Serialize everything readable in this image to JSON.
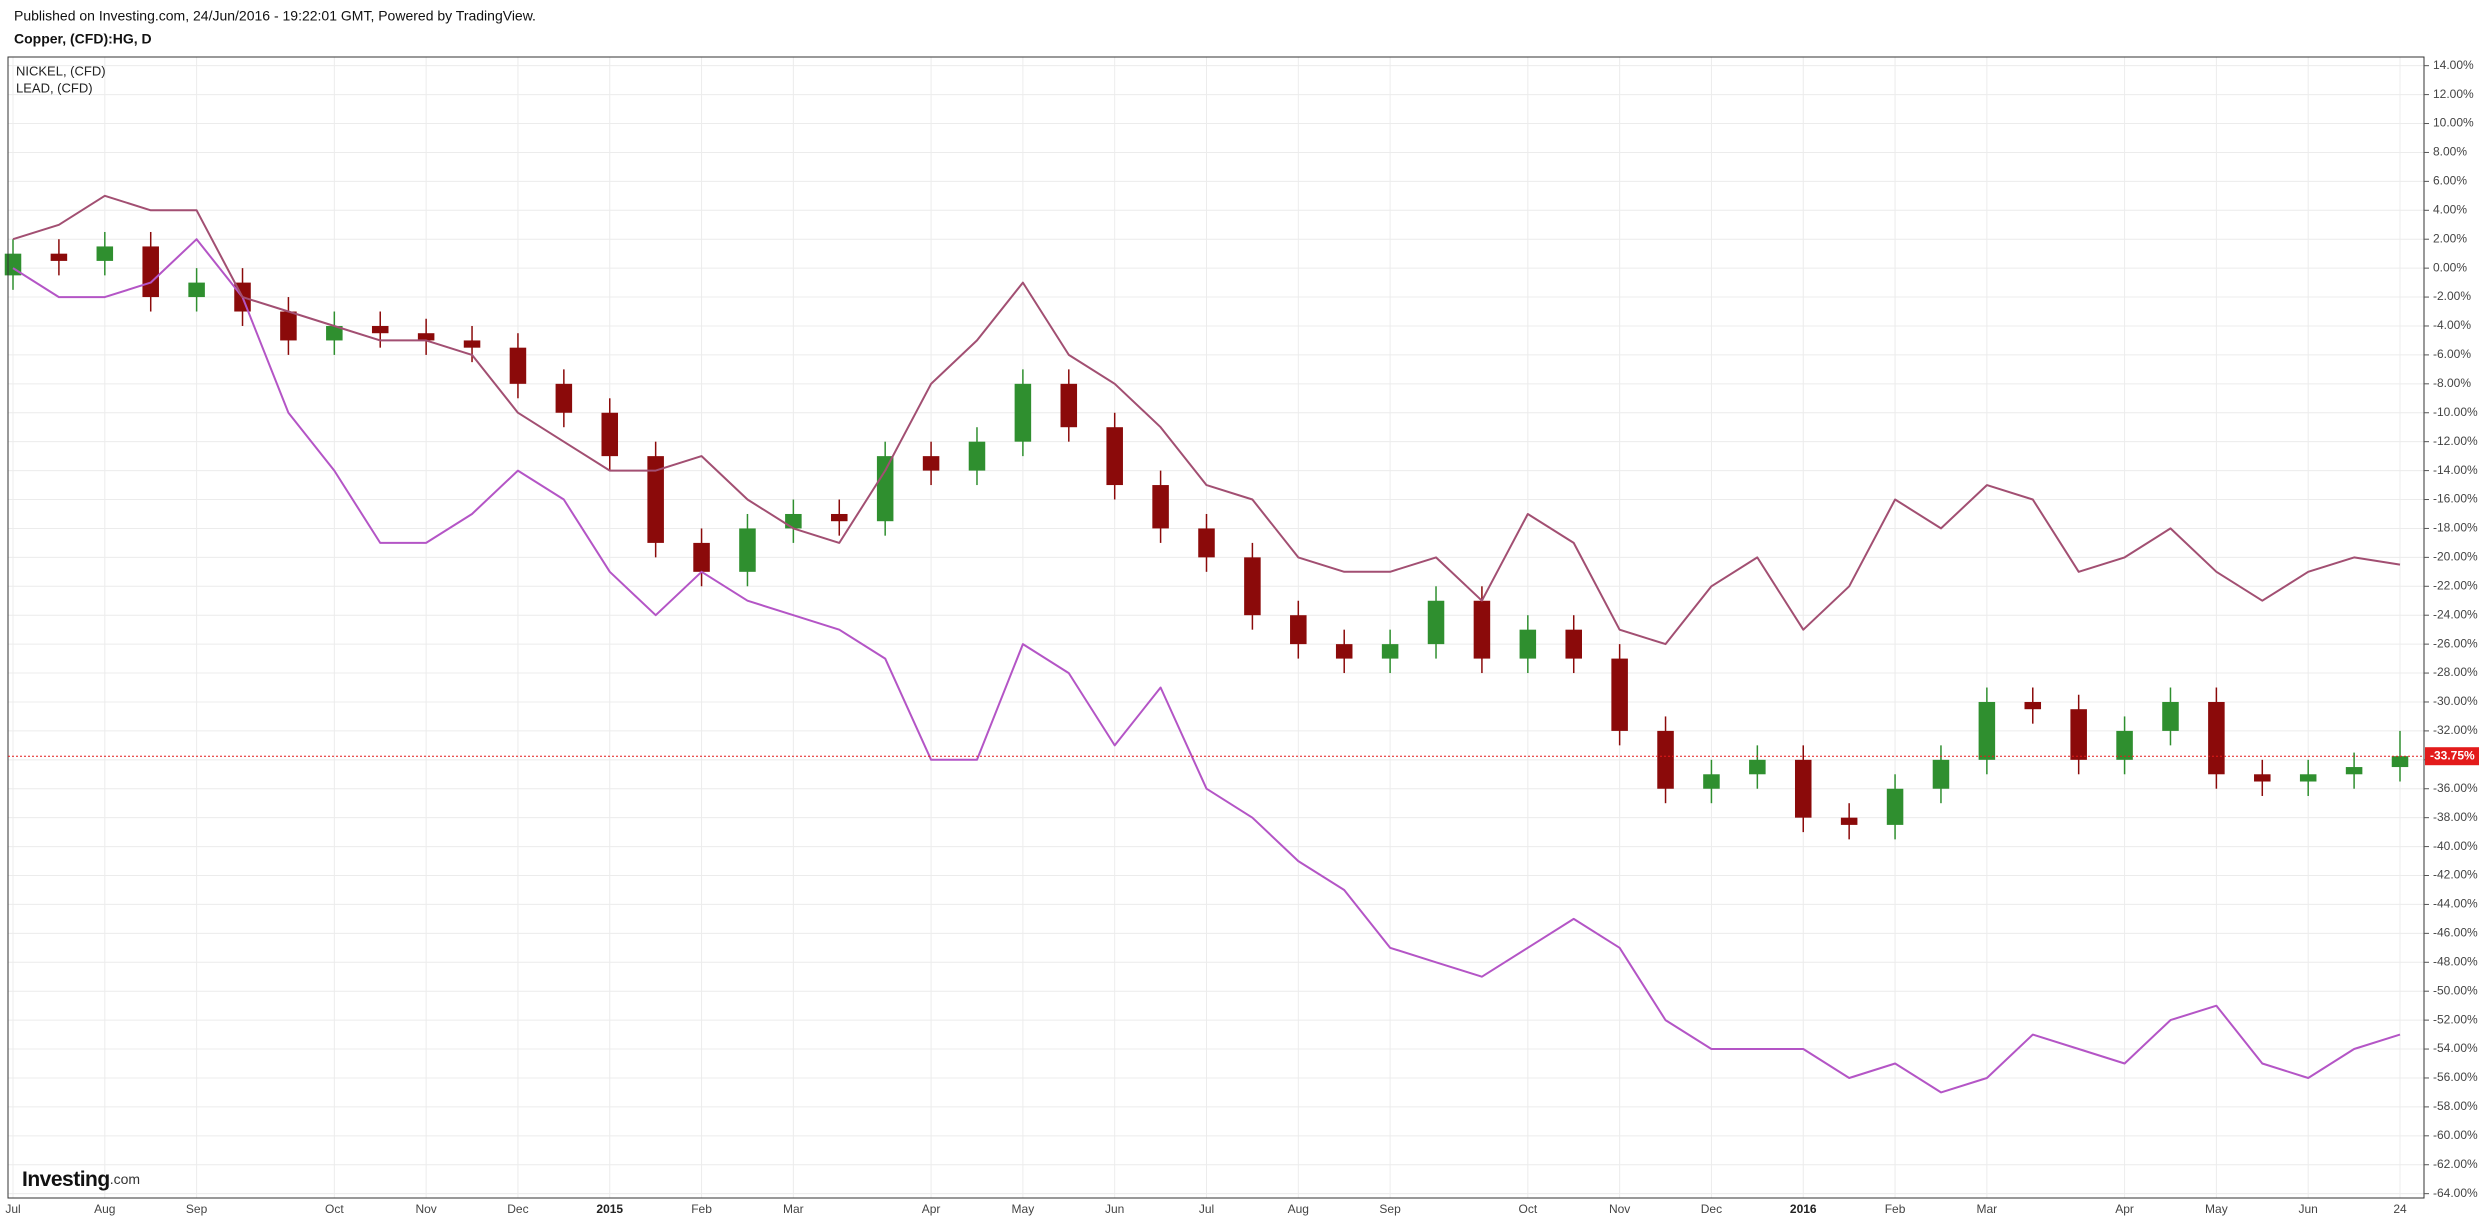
{
  "header": {
    "published": "Published on Investing.com, 24/Jun/2016 - 19:22:01 GMT, Powered by TradingView."
  },
  "brand": {
    "name": "Investing",
    "suffix": ".com"
  },
  "chart_data": {
    "type": "candlestick",
    "title": "Copper, (CFD):HG, D",
    "categories": [
      "Jul",
      null,
      "Aug",
      null,
      "Sep",
      null,
      null,
      "Oct",
      null,
      "Nov",
      null,
      "Dec",
      null,
      "2015",
      null,
      "Feb",
      null,
      "Mar",
      null,
      null,
      "Apr",
      null,
      "May",
      null,
      "Jun",
      null,
      "Jul",
      null,
      "Aug",
      null,
      "Sep",
      null,
      null,
      "Oct",
      null,
      "Nov",
      null,
      "Dec",
      null,
      "2016",
      null,
      "Feb",
      null,
      "Mar",
      null,
      null,
      "Apr",
      null,
      "May",
      null,
      "Jun",
      null,
      "24"
    ],
    "open": [
      -0.5,
      1,
      0.5,
      1.5,
      -2,
      -1,
      -3,
      -5,
      -4,
      -4.5,
      -5,
      -5.5,
      -8,
      -10,
      -13,
      -19,
      -21,
      -18,
      -17,
      -17.5,
      -13,
      -14,
      -12,
      -8,
      -11,
      -15,
      -18,
      -20,
      -24,
      -26,
      -27,
      -26,
      -23,
      -27,
      -25,
      -27,
      -32,
      -36,
      -35,
      -34,
      -38,
      -38.5,
      -36,
      -34,
      -30,
      -30.5,
      -34,
      -32,
      -30,
      -35,
      -35.5,
      -35,
      -34.5
    ],
    "high": [
      2,
      2,
      2.5,
      2.5,
      0,
      0,
      -2,
      -3,
      -3,
      -3.5,
      -4,
      -4.5,
      -7,
      -9,
      -12,
      -18,
      -17,
      -16,
      -16,
      -12,
      -12,
      -11,
      -7,
      -7,
      -10,
      -14,
      -17,
      -19,
      -23,
      -25,
      -25,
      -22,
      -22,
      -24,
      -24,
      -26,
      -31,
      -34,
      -33,
      -33,
      -37,
      -35,
      -33,
      -29,
      -29,
      -29.5,
      -31,
      -29,
      -29,
      -34,
      -34,
      -33.5,
      -32
    ],
    "low": [
      -1.5,
      -0.5,
      -0.5,
      -3,
      -3,
      -4,
      -6,
      -6,
      -5.5,
      -6,
      -6.5,
      -9,
      -11,
      -14,
      -20,
      -22,
      -22,
      -19,
      -18.5,
      -18.5,
      -15,
      -15,
      -13,
      -12,
      -16,
      -19,
      -21,
      -25,
      -27,
      -28,
      -28,
      -27,
      -28,
      -28,
      -28,
      -33,
      -37,
      -37,
      -36,
      -39,
      -39.5,
      -39.5,
      -37,
      -35,
      -31.5,
      -35,
      -35,
      -33,
      -36,
      -36.5,
      -36.5,
      -36,
      -35.5
    ],
    "close": [
      1,
      0.5,
      1.5,
      -2,
      -1,
      -3,
      -5,
      -4,
      -4.5,
      -5,
      -5.5,
      -8,
      -10,
      -13,
      -19,
      -21,
      -18,
      -17,
      -17.5,
      -13,
      -14,
      -12,
      -8,
      -11,
      -15,
      -18,
      -20,
      -24,
      -26,
      -27,
      -26,
      -23,
      -27,
      -25,
      -27,
      -32,
      -36,
      -35,
      -34,
      -38,
      -38.5,
      -36,
      -34,
      -30,
      -30.5,
      -34,
      -32,
      -30,
      -35,
      -35.5,
      -35,
      -34.5,
      -33.75
    ],
    "up_color": "#2f8f2f",
    "down_color": "#8b0a0a",
    "series": [
      {
        "name": "NICKEL,  (CFD)",
        "color": "#b455c6",
        "values": [
          0,
          -2,
          -2,
          -1,
          2,
          -2,
          -10,
          -14,
          -19,
          -19,
          -17,
          -14,
          -16,
          -21,
          -24,
          -21,
          -23,
          -24,
          -25,
          -27,
          -34,
          -34,
          -26,
          -28,
          -33,
          -29,
          -36,
          -38,
          -41,
          -43,
          -47,
          -48,
          -49,
          -47,
          -45,
          -47,
          -52,
          -54,
          -54,
          -54,
          -56,
          -55,
          -57,
          -56,
          -53,
          -54,
          -55,
          -52,
          -51,
          -55,
          -56,
          -54,
          -53
        ]
      },
      {
        "name": "LEAD,  (CFD)",
        "color": "#a24f72",
        "values": [
          2,
          3,
          5,
          4,
          4,
          -2,
          -3,
          -4,
          -5,
          -5,
          -6,
          -10,
          -12,
          -14,
          -14,
          -13,
          -16,
          -18,
          -19,
          -14,
          -8,
          -5,
          -1,
          -6,
          -8,
          -11,
          -15,
          -16,
          -20,
          -21,
          -21,
          -20,
          -23,
          -17,
          -19,
          -25,
          -26,
          -22,
          -20,
          -25,
          -22,
          -16,
          -18,
          -15,
          -16,
          -21,
          -20,
          -18,
          -21,
          -23,
          -21,
          -20,
          -20.5
        ]
      }
    ],
    "last_value": {
      "value": -33.75,
      "label": "-33.75%"
    },
    "last_color": "#e31b1b",
    "ylim": [
      -64.3,
      14.6
    ],
    "yticks": [
      {
        "value": 14,
        "label": "14.00%"
      },
      {
        "value": 12,
        "label": "12.00%"
      },
      {
        "value": 10,
        "label": "10.00%"
      },
      {
        "value": 8,
        "label": "8.00%"
      },
      {
        "value": 6,
        "label": "6.00%"
      },
      {
        "value": 4,
        "label": "4.00%"
      },
      {
        "value": 2,
        "label": "2.00%"
      },
      {
        "value": 0,
        "label": "0.00%"
      },
      {
        "value": -2,
        "label": "-2.00%"
      },
      {
        "value": -4,
        "label": "-4.00%"
      },
      {
        "value": -6,
        "label": "-6.00%"
      },
      {
        "value": -8,
        "label": "-8.00%"
      },
      {
        "value": -10,
        "label": "-10.00%"
      },
      {
        "value": -12,
        "label": "-12.00%"
      },
      {
        "value": -14,
        "label": "-14.00%"
      },
      {
        "value": -16,
        "label": "-16.00%"
      },
      {
        "value": -18,
        "label": "-18.00%"
      },
      {
        "value": -20,
        "label": "-20.00%"
      },
      {
        "value": -22,
        "label": "-22.00%"
      },
      {
        "value": -24,
        "label": "-24.00%"
      },
      {
        "value": -26,
        "label": "-26.00%"
      },
      {
        "value": -28,
        "label": "-28.00%"
      },
      {
        "value": -30,
        "label": "-30.00%"
      },
      {
        "value": -32,
        "label": "-32.00%"
      },
      {
        "value": -34,
        "label": "-34.00%"
      },
      {
        "value": -36,
        "label": "-36.00%"
      },
      {
        "value": -38,
        "label": "-38.00%"
      },
      {
        "value": -40,
        "label": "-40.00%"
      },
      {
        "value": -42,
        "label": "-42.00%"
      },
      {
        "value": -44,
        "label": "-44.00%"
      },
      {
        "value": -46,
        "label": "-46.00%"
      },
      {
        "value": -48,
        "label": "-48.00%"
      },
      {
        "value": -50,
        "label": "-50.00%"
      },
      {
        "value": -52,
        "label": "-52.00%"
      },
      {
        "value": -54,
        "label": "-54.00%"
      },
      {
        "value": -56,
        "label": "-56.00%"
      },
      {
        "value": -58,
        "label": "-58.00%"
      },
      {
        "value": -60,
        "label": "-60.00%"
      },
      {
        "value": -62,
        "label": "-62.00%"
      },
      {
        "value": -64,
        "label": "-64.00%"
      }
    ],
    "grid": true
  }
}
